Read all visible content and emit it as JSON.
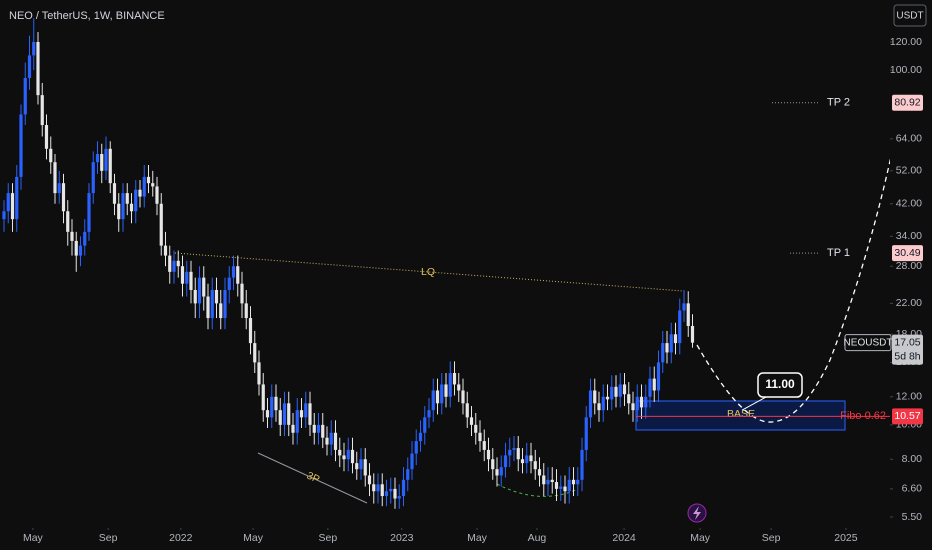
{
  "chart_data": {
    "type": "candlestick",
    "title": "NEO / TetherUS, 1W, BINANCE",
    "currency": "USDT",
    "up_color": "#2962ff",
    "down_color": "#e6e6e6",
    "log_scale": true,
    "ylim": [
      5.12,
      157.6
    ],
    "yticks": [
      {
        "value": 120,
        "label": "120.00"
      },
      {
        "value": 100,
        "label": "100.00"
      },
      {
        "value": 64,
        "label": "64.00"
      },
      {
        "value": 52,
        "label": "52.00"
      },
      {
        "value": 42,
        "label": "42.00"
      },
      {
        "value": 34,
        "label": "34.00"
      },
      {
        "value": 28,
        "label": "28.00"
      },
      {
        "value": 22,
        "label": "22.00"
      },
      {
        "value": 18,
        "label": "18.00"
      },
      {
        "value": 15,
        "label": "15.00"
      },
      {
        "value": 12,
        "label": "12.00"
      },
      {
        "value": 10,
        "label": "10.00"
      },
      {
        "value": 8,
        "label": "8.00"
      },
      {
        "value": 6.6,
        "label": "6.60"
      },
      {
        "value": 5.5,
        "label": "5.50"
      }
    ],
    "xlim": [
      -0.94,
      208.47
    ],
    "xticks": [
      {
        "value": 6.8,
        "label": "May"
      },
      {
        "value": 24.5,
        "label": "Sep"
      },
      {
        "value": 41.6,
        "label": "2022"
      },
      {
        "value": 58.6,
        "label": "May"
      },
      {
        "value": 76.2,
        "label": "Sep"
      },
      {
        "value": 93.6,
        "label": "2023"
      },
      {
        "value": 111.3,
        "label": "May"
      },
      {
        "value": 125.4,
        "label": "Aug"
      },
      {
        "value": 145.9,
        "label": "2024"
      },
      {
        "value": 163.8,
        "label": "May"
      },
      {
        "value": 180.5,
        "label": "Sep"
      },
      {
        "value": 198.1,
        "label": "2025"
      }
    ],
    "candles": [
      [
        38,
        43,
        35,
        40
      ],
      [
        40,
        48,
        37,
        45
      ],
      [
        45,
        48,
        35,
        38
      ],
      [
        38,
        54,
        35,
        50
      ],
      [
        50,
        80,
        46,
        75
      ],
      [
        75,
        105,
        70,
        95
      ],
      [
        95,
        125,
        88,
        110
      ],
      [
        110,
        140,
        100,
        120
      ],
      [
        120,
        128,
        80,
        85
      ],
      [
        85,
        92,
        65,
        70
      ],
      [
        70,
        75,
        56,
        60
      ],
      [
        60,
        65,
        51,
        55
      ],
      [
        55,
        58,
        42,
        45
      ],
      [
        45,
        52,
        42,
        48
      ],
      [
        48,
        51,
        37,
        40
      ],
      [
        40,
        43,
        32,
        35
      ],
      [
        35,
        38,
        30,
        33
      ],
      [
        33,
        35,
        27,
        30
      ],
      [
        30,
        34,
        28,
        32
      ],
      [
        32,
        38,
        30,
        35
      ],
      [
        35,
        48,
        33,
        45
      ],
      [
        45,
        59,
        42,
        55
      ],
      [
        55,
        63,
        51,
        58
      ],
      [
        58,
        62,
        48,
        52
      ],
      [
        52,
        65,
        49,
        60
      ],
      [
        60,
        63,
        45,
        48
      ],
      [
        48,
        51,
        39,
        42
      ],
      [
        42,
        45,
        35,
        38
      ],
      [
        38,
        48,
        35,
        45
      ],
      [
        45,
        48,
        39,
        42
      ],
      [
        42,
        45,
        37,
        40
      ],
      [
        40,
        49,
        37,
        46
      ],
      [
        46,
        49,
        41,
        44
      ],
      [
        44,
        54,
        41,
        50
      ],
      [
        50,
        54,
        45,
        48
      ],
      [
        48,
        52,
        44,
        47
      ],
      [
        47,
        50,
        39,
        42
      ],
      [
        42,
        45,
        30,
        32
      ],
      [
        32,
        35,
        28,
        30
      ],
      [
        30,
        32,
        25,
        27
      ],
      [
        27,
        31,
        25,
        29
      ],
      [
        29,
        31,
        26,
        28
      ],
      [
        28,
        30,
        23,
        25
      ],
      [
        25,
        29,
        23,
        27
      ],
      [
        27,
        29,
        22,
        24
      ],
      [
        24,
        26,
        20,
        22
      ],
      [
        22,
        28,
        20,
        26
      ],
      [
        26,
        28,
        21,
        23
      ],
      [
        23,
        25,
        18.6,
        20
      ],
      [
        20,
        26,
        18.6,
        24
      ],
      [
        24,
        26,
        20,
        22
      ],
      [
        22,
        24,
        18.6,
        20
      ],
      [
        20,
        26,
        18.6,
        24
      ],
      [
        24,
        28,
        22,
        26
      ],
      [
        26,
        30,
        24,
        28
      ],
      [
        28,
        30,
        23,
        25
      ],
      [
        25,
        27,
        20,
        22
      ],
      [
        22,
        24,
        18.6,
        20
      ],
      [
        20,
        21.6,
        15.8,
        17
      ],
      [
        17,
        18.4,
        14,
        15
      ],
      [
        15,
        16.2,
        12.1,
        13
      ],
      [
        13,
        14,
        10.2,
        11
      ],
      [
        11,
        11.9,
        9.8,
        10.5
      ],
      [
        10.5,
        13,
        9.8,
        12
      ],
      [
        12,
        13,
        10.2,
        11
      ],
      [
        11,
        11.9,
        9.3,
        10
      ],
      [
        10,
        12.4,
        9.3,
        11.5
      ],
      [
        11.5,
        12.4,
        9.3,
        10
      ],
      [
        10,
        10.8,
        8.8,
        9.5
      ],
      [
        9.5,
        11.9,
        8.8,
        11
      ],
      [
        11,
        11.9,
        9.8,
        10.5
      ],
      [
        10.5,
        12.4,
        9.8,
        11.5
      ],
      [
        11.5,
        12.4,
        9.3,
        10
      ],
      [
        10,
        10.8,
        8.8,
        9.5
      ],
      [
        9.5,
        10.8,
        8.8,
        10
      ],
      [
        10,
        10.8,
        8.6,
        9.2
      ],
      [
        9.2,
        9.9,
        8.2,
        8.8
      ],
      [
        8.8,
        10.3,
        8.2,
        9.5
      ],
      [
        9.5,
        10.3,
        7.9,
        8.5
      ],
      [
        8.5,
        9.2,
        7.6,
        8.2
      ],
      [
        8.2,
        8.9,
        7.4,
        8
      ],
      [
        8,
        9.2,
        7.4,
        8.5
      ],
      [
        8.5,
        9.2,
        7.3,
        7.8
      ],
      [
        7.8,
        8.4,
        7,
        7.5
      ],
      [
        7.5,
        8.6,
        7,
        8
      ],
      [
        8,
        8.6,
        6.7,
        7.2
      ],
      [
        7.2,
        7.8,
        6.3,
        6.8
      ],
      [
        6.8,
        7.3,
        6,
        6.5
      ],
      [
        6.5,
        7.3,
        6,
        6.8
      ],
      [
        6.8,
        7.3,
        5.9,
        6.3
      ],
      [
        6.3,
        7,
        5.9,
        6.5
      ],
      [
        6.5,
        7.1,
        6,
        6.6
      ],
      [
        6.6,
        7.1,
        5.8,
        6.2
      ],
      [
        6.2,
        6.8,
        5.8,
        6.3
      ],
      [
        6.3,
        7.6,
        5.9,
        7
      ],
      [
        7,
        8.1,
        6.5,
        7.5
      ],
      [
        7.5,
        9,
        7,
        8.3
      ],
      [
        8.3,
        9.7,
        7.7,
        9
      ],
      [
        9,
        10.3,
        8.4,
        9.5
      ],
      [
        9.5,
        11.3,
        8.8,
        10.5
      ],
      [
        10.5,
        11.9,
        9.8,
        11
      ],
      [
        11,
        13.5,
        10.2,
        12.5
      ],
      [
        12.5,
        13.5,
        10.7,
        11.5
      ],
      [
        11.5,
        14,
        10.7,
        13
      ],
      [
        13,
        14,
        11.2,
        12
      ],
      [
        12,
        15.1,
        11.2,
        14
      ],
      [
        14,
        15.1,
        12.1,
        13
      ],
      [
        13,
        14,
        11.6,
        12.5
      ],
      [
        12.5,
        13.5,
        10.7,
        11.5
      ],
      [
        11.5,
        12.4,
        9.8,
        10.5
      ],
      [
        10.5,
        11.3,
        9.3,
        10
      ],
      [
        10,
        10.8,
        8.8,
        9.5
      ],
      [
        9.5,
        10.3,
        8.4,
        9
      ],
      [
        9,
        9.7,
        7.9,
        8.5
      ],
      [
        8.5,
        9.2,
        7.4,
        8
      ],
      [
        8,
        8.6,
        7,
        7.5
      ],
      [
        7.5,
        8.1,
        6.7,
        7.2
      ],
      [
        7.2,
        8.2,
        6.7,
        7.6
      ],
      [
        7.6,
        8.9,
        7.1,
        8.2
      ],
      [
        8.2,
        9.2,
        7.6,
        8.5
      ],
      [
        8.5,
        9.3,
        7.9,
        8.6
      ],
      [
        8.6,
        9.3,
        7.4,
        8
      ],
      [
        8,
        8.6,
        7.3,
        7.8
      ],
      [
        7.8,
        8.9,
        7.3,
        8.2
      ],
      [
        8.2,
        8.9,
        7.3,
        7.9
      ],
      [
        7.9,
        8.5,
        7,
        7.5
      ],
      [
        7.5,
        8.1,
        6.7,
        7.2
      ],
      [
        7.2,
        7.8,
        6.3,
        6.8
      ],
      [
        6.8,
        7.6,
        6.3,
        7
      ],
      [
        7,
        7.6,
        6.4,
        6.9
      ],
      [
        6.9,
        7.5,
        6.1,
        6.6
      ],
      [
        6.6,
        7.2,
        6.1,
        6.7
      ],
      [
        6.7,
        7.2,
        6,
        6.5
      ],
      [
        6.5,
        7.6,
        6,
        7
      ],
      [
        7,
        7.6,
        6.3,
        6.8
      ],
      [
        6.8,
        7.6,
        6.3,
        7
      ],
      [
        7,
        9.2,
        6.5,
        8.5
      ],
      [
        8.5,
        11.3,
        7.9,
        10.5
      ],
      [
        10.5,
        13.5,
        9.8,
        12.5
      ],
      [
        12.5,
        13.5,
        10.7,
        11.5
      ],
      [
        11.5,
        12.4,
        10.2,
        11
      ],
      [
        11,
        13,
        10.2,
        12
      ],
      [
        12,
        13,
        11,
        11.8
      ],
      [
        11.8,
        13.8,
        11,
        12.8
      ],
      [
        12.8,
        13.8,
        11.2,
        12
      ],
      [
        12,
        14,
        11.2,
        13
      ],
      [
        13,
        14,
        11.3,
        12.2
      ],
      [
        12.2,
        13.2,
        10.7,
        11.5
      ],
      [
        11.5,
        12.4,
        10.2,
        11
      ],
      [
        11,
        13,
        10.2,
        12
      ],
      [
        12,
        13,
        10.4,
        11.2
      ],
      [
        11.2,
        13,
        10.4,
        12
      ],
      [
        12,
        14.6,
        11.2,
        13.5
      ],
      [
        13.5,
        14.6,
        11.6,
        12.5
      ],
      [
        12.5,
        16.2,
        11.6,
        15
      ],
      [
        15,
        18.4,
        14,
        17
      ],
      [
        17,
        18.4,
        14.9,
        16
      ],
      [
        16,
        19.4,
        14.9,
        18
      ],
      [
        18,
        19.4,
        15.8,
        17
      ],
      [
        17,
        22.7,
        15.8,
        21
      ],
      [
        21,
        24,
        19.5,
        22
      ],
      [
        22,
        23.8,
        17.7,
        19
      ],
      [
        19,
        20.5,
        16.5,
        17.05
      ]
    ],
    "levels": [
      {
        "name": "TP 2",
        "value": 80.92,
        "color": "#fccbcd",
        "label_color": "#131722"
      },
      {
        "name": "TP 1",
        "value": 30.49,
        "color": "#fccbcd",
        "label_color": "#131722"
      },
      {
        "name": "Fibo 0.62",
        "value": 10.57,
        "color": "#f23645",
        "label_color": "#ffffff"
      }
    ],
    "last_price": {
      "name": "NEOUSDT",
      "value": 17.05,
      "countdown": "5d 8h"
    },
    "annotations": {
      "lq": "LQ",
      "three_p": "3P",
      "base": "BASE",
      "target": {
        "value": 11,
        "label": "11.00"
      }
    }
  }
}
